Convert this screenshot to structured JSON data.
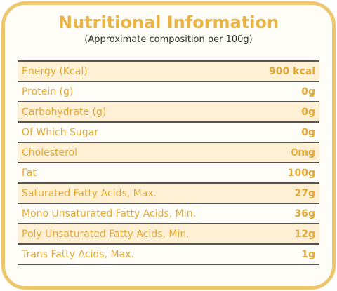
{
  "header": {
    "title": "Nutritional Information",
    "subtitle": "(Approximate composition per 100g)"
  },
  "table": {
    "rows": [
      [
        "Energy (Kcal)",
        "900 kcal"
      ],
      [
        "Protein (g)",
        "0g"
      ],
      [
        "Carbohydrate (g)",
        "0g"
      ],
      [
        "Of Which Sugar",
        "0g"
      ],
      [
        "Cholesterol",
        "0mg"
      ],
      [
        "Fat",
        "100g"
      ],
      [
        "Saturated Fatty Acids, Max.",
        "27g"
      ],
      [
        "Mono Unsaturated Fatty Acids, Min.",
        "36g"
      ],
      [
        "Poly Unsaturated Fatty Acids, Min.",
        "12g"
      ],
      [
        "Trans Fatty Acids, Max.",
        "1g"
      ]
    ]
  }
}
